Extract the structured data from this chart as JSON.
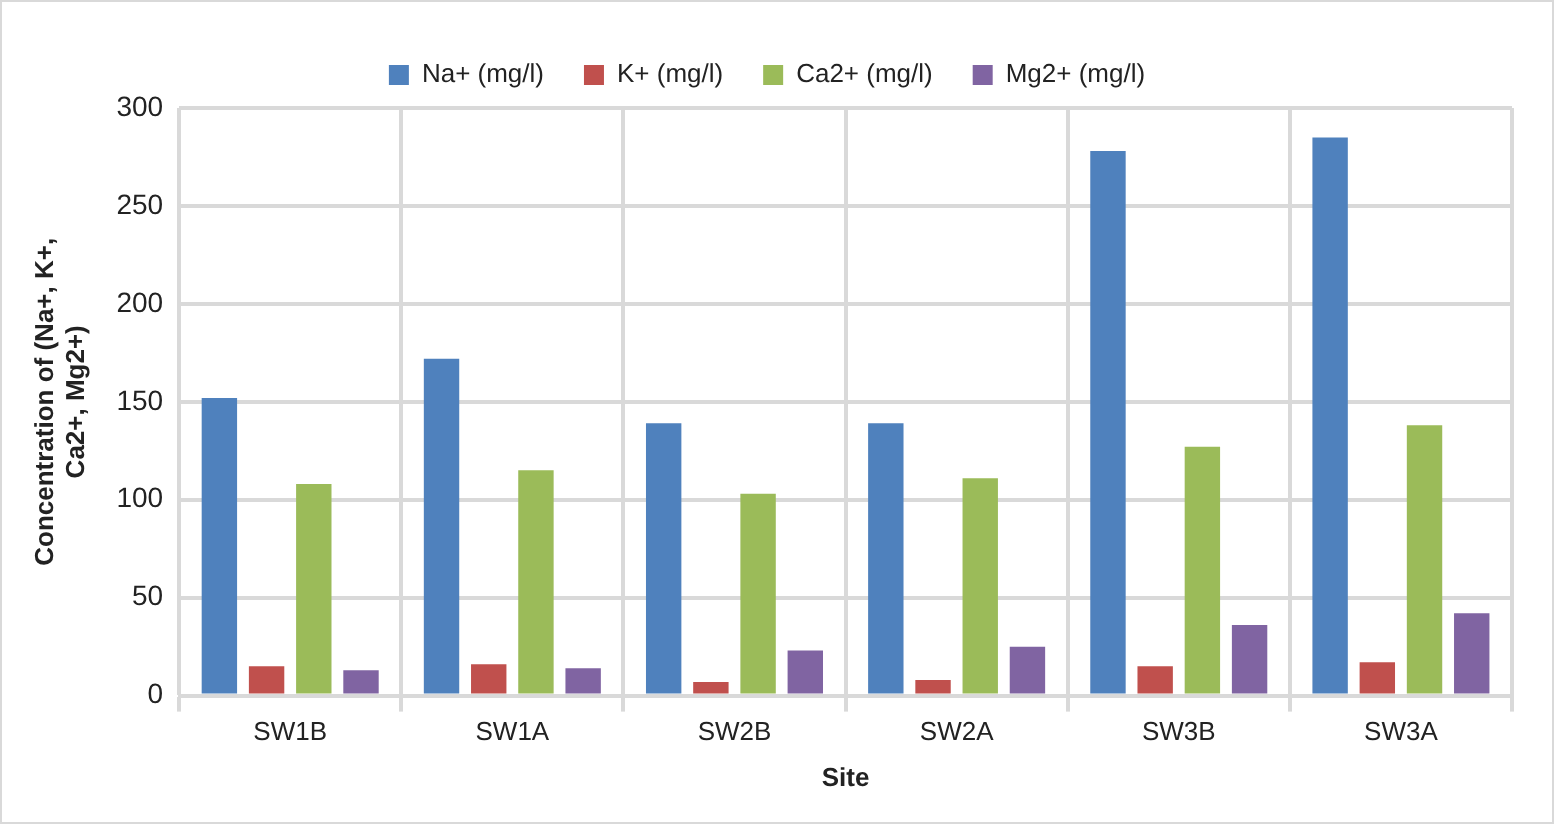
{
  "chart_data": {
    "type": "bar",
    "xlabel": "Site",
    "ylabel": "Concentration of (Na+, K+, Ca2+, Mg2+)",
    "categories": [
      "SW1B",
      "SW1A",
      "SW2B",
      "SW2A",
      "SW3B",
      "SW3A"
    ],
    "series": [
      {
        "name": "Na+ (mg/l)",
        "color": "#4f81bd",
        "values": [
          152,
          172,
          139,
          139,
          278,
          285
        ]
      },
      {
        "name": "K+ (mg/l)",
        "color": "#c0504d",
        "values": [
          15,
          16,
          7,
          8,
          15,
          17
        ]
      },
      {
        "name": "Ca2+ (mg/l)",
        "color": "#9bbb59",
        "values": [
          108,
          115,
          103,
          111,
          127,
          138
        ]
      },
      {
        "name": "Mg2+ (mg/l)",
        "color": "#8064a2",
        "values": [
          13,
          14,
          23,
          25,
          36,
          42
        ]
      }
    ],
    "ylim": [
      0,
      300
    ],
    "yticks": [
      0,
      50,
      100,
      150,
      200,
      250,
      300
    ],
    "grid": true,
    "legend": "top"
  }
}
